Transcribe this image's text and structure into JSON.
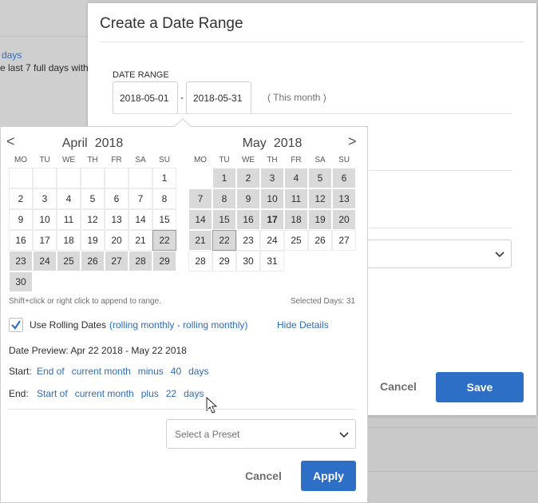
{
  "background": {
    "link": "days",
    "text": "e last 7 full days witho"
  },
  "modal": {
    "title": "Create a Date Range",
    "date_range_label": "DATE RANGE",
    "start": "2018-05-01",
    "separator": "-",
    "end": "2018-05-31",
    "range_name": "( This month )",
    "cancel": "Cancel",
    "save": "Save"
  },
  "popover": {
    "weekdays": [
      "MO",
      "TU",
      "WE",
      "TH",
      "FR",
      "SA",
      "SU"
    ],
    "calendars": [
      {
        "month": "April",
        "year": "2018",
        "nav": "<",
        "highlight": {
          "from": 22,
          "to": 30
        },
        "outlined": 22,
        "weeks": [
          [
            null,
            null,
            null,
            null,
            null,
            null,
            1
          ],
          [
            2,
            3,
            4,
            5,
            6,
            7,
            8
          ],
          [
            9,
            10,
            11,
            12,
            13,
            14,
            15
          ],
          [
            16,
            17,
            18,
            19,
            20,
            21,
            22
          ],
          [
            23,
            24,
            25,
            26,
            27,
            28,
            29
          ],
          [
            30,
            null,
            null,
            null,
            null,
            null,
            null
          ]
        ]
      },
      {
        "month": "May",
        "year": "2018",
        "nav": ">",
        "highlight": {
          "from": 1,
          "to": 22
        },
        "outlined": 22,
        "bold": 17,
        "weeks": [
          [
            null,
            1,
            2,
            3,
            4,
            5,
            6
          ],
          [
            7,
            8,
            9,
            10,
            11,
            12,
            13
          ],
          [
            14,
            15,
            16,
            17,
            18,
            19,
            20
          ],
          [
            21,
            22,
            23,
            24,
            25,
            26,
            27
          ],
          [
            28,
            29,
            30,
            31,
            null,
            null,
            null
          ]
        ]
      }
    ],
    "hint": "Shift+click or right click to append to range.",
    "selected_days": "Selected Days: 31",
    "rolling_label": "Use Rolling Dates",
    "rolling_mode": "(rolling monthly - rolling monthly)",
    "hide_details": "Hide Details",
    "date_preview": "Date Preview: Apr 22 2018 - May 22 2018",
    "start": {
      "label": "Start:",
      "tokens": [
        "End of",
        "current month",
        "minus",
        "40",
        "days"
      ]
    },
    "end": {
      "label": "End:",
      "tokens": [
        "Start of",
        "current month",
        "plus",
        "22",
        "days"
      ]
    },
    "preset_placeholder": "Select a Preset",
    "cancel": "Cancel",
    "apply": "Apply"
  }
}
